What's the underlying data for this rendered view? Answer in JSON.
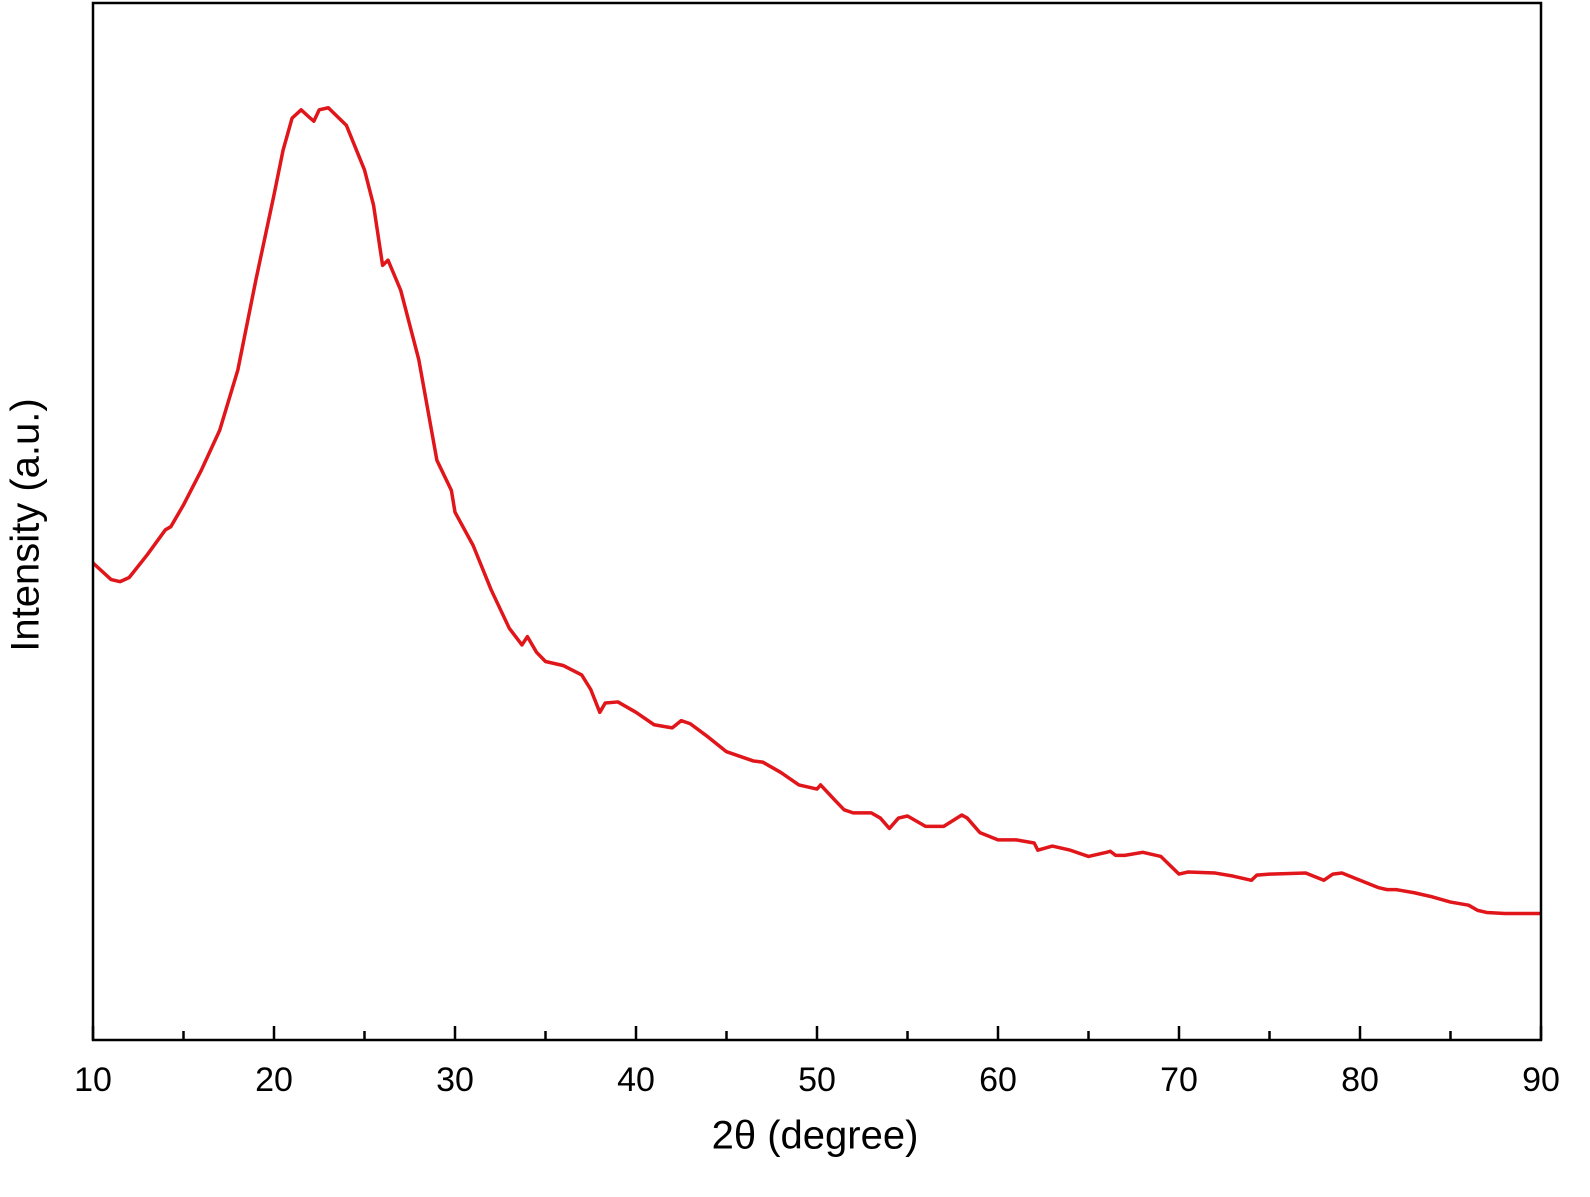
{
  "chart_data": {
    "type": "line",
    "x_label": "2θ (degree)",
    "y_label": "Intensity (a.u.)",
    "xlim": [
      10,
      90
    ],
    "xticks": [
      10,
      20,
      30,
      40,
      50,
      60,
      70,
      80,
      90
    ],
    "xminorticks": [
      15,
      25,
      35,
      45,
      55,
      65,
      75,
      85
    ],
    "ylim": [
      0,
      100
    ],
    "series": [
      {
        "color": "#e0161b",
        "x": [
          10,
          11,
          11.5,
          12,
          13,
          14,
          14.3,
          15,
          16,
          17,
          18,
          19,
          20,
          20.5,
          21,
          21.5,
          22,
          22.2,
          22.5,
          23,
          24,
          25,
          25.5,
          26,
          26.3,
          27,
          28,
          29,
          29.8,
          30,
          31,
          32,
          33,
          33.7,
          34,
          34.5,
          35,
          36,
          37,
          37.5,
          38,
          38.3,
          39,
          40,
          41,
          42,
          42.5,
          43,
          44,
          45,
          46,
          46.5,
          47,
          48,
          49,
          50,
          50.2,
          51,
          51.5,
          52,
          53,
          53.5,
          54,
          54.5,
          55,
          56,
          57,
          58,
          58.3,
          59,
          60,
          61,
          62,
          62.2,
          63,
          64,
          65,
          66,
          66.2,
          66.5,
          67,
          68,
          69,
          70,
          70.5,
          72,
          73,
          74,
          74.3,
          75,
          77,
          78,
          78.5,
          79,
          80,
          81,
          81.5,
          82,
          83,
          84,
          85,
          86,
          86.5,
          87,
          88,
          90
        ],
        "values": [
          46.0,
          44.4,
          44.2,
          44.6,
          46.8,
          49.2,
          49.5,
          51.6,
          55.0,
          58.8,
          64.6,
          73.3,
          81.5,
          85.8,
          88.9,
          89.7,
          88.9,
          88.6,
          89.7,
          89.9,
          88.2,
          83.9,
          80.5,
          74.7,
          75.2,
          72.3,
          65.6,
          55.9,
          53.0,
          50.9,
          47.7,
          43.4,
          39.7,
          38.1,
          38.9,
          37.4,
          36.5,
          36.1,
          35.2,
          33.8,
          31.6,
          32.5,
          32.6,
          31.6,
          30.4,
          30.1,
          30.8,
          30.5,
          29.2,
          27.8,
          27.2,
          26.9,
          26.8,
          25.8,
          24.6,
          24.2,
          24.6,
          23.1,
          22.2,
          21.9,
          21.9,
          21.4,
          20.4,
          21.4,
          21.6,
          20.6,
          20.6,
          21.7,
          21.4,
          20.0,
          19.3,
          19.3,
          19.0,
          18.3,
          18.7,
          18.3,
          17.7,
          18.1,
          18.2,
          17.8,
          17.8,
          18.1,
          17.7,
          16.0,
          16.2,
          16.1,
          15.8,
          15.4,
          15.9,
          16.0,
          16.1,
          15.4,
          16.0,
          16.1,
          15.4,
          14.7,
          14.5,
          14.5,
          14.2,
          13.8,
          13.3,
          13.0,
          12.5,
          12.3,
          12.2,
          12.2
        ]
      }
    ]
  }
}
